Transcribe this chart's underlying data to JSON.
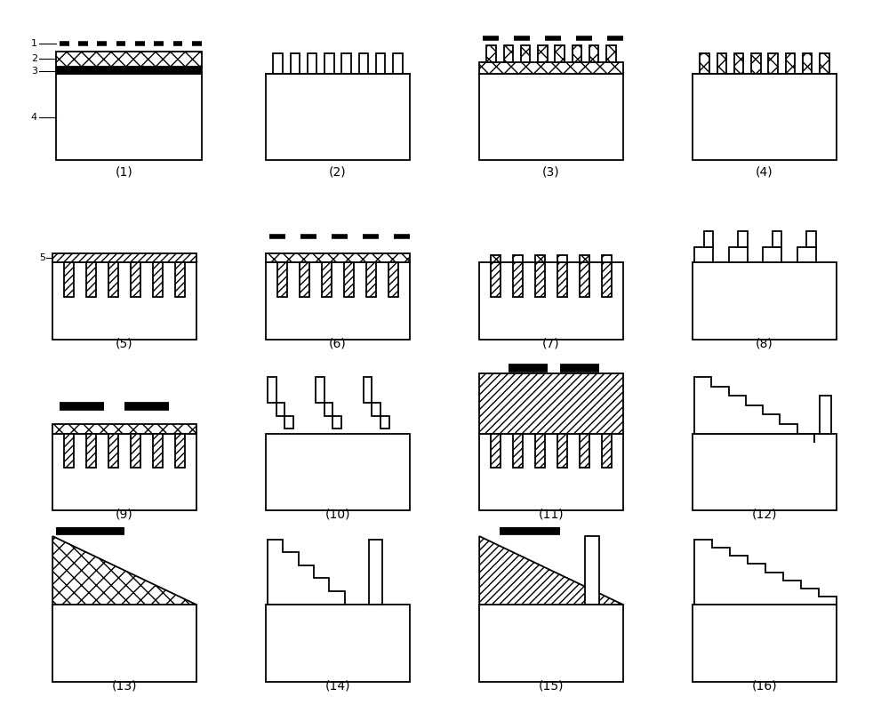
{
  "fig_width": 10.0,
  "fig_height": 8.02,
  "background": "#ffffff",
  "lw": 1.3,
  "panel_labels": [
    "(1)",
    "(2)",
    "(3)",
    "(4)",
    "(5)",
    "(6)",
    "(7)",
    "(8)",
    "(9)",
    "(10)",
    "(11)",
    "(12)",
    "(13)",
    "(14)",
    "(15)",
    "(16)"
  ],
  "label_fontsize": 10
}
